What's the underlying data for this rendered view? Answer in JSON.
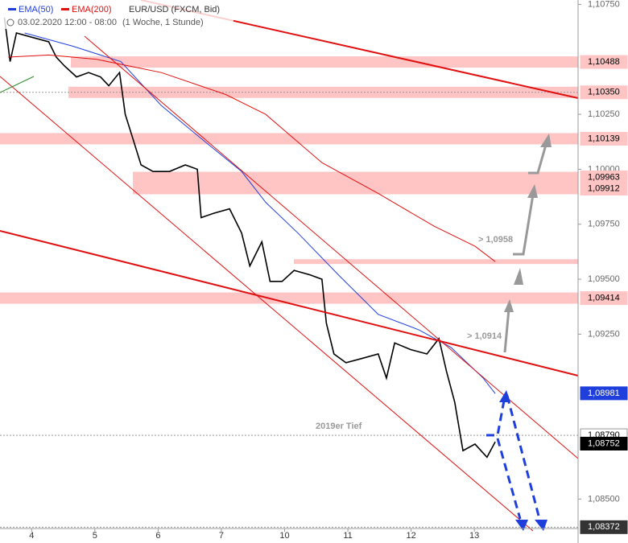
{
  "chart_data": {
    "type": "line",
    "header": {
      "symbol": "EUR/USD (FXCM, Bid)",
      "date": "03.02.2020 12:00 - 08:00",
      "period": "(1 Woche, 1 Stunde)"
    },
    "xlim": [
      -0.5,
      8.64
    ],
    "xticks": [
      {
        "value": 0,
        "label": "4"
      },
      {
        "value": 1,
        "label": "5"
      },
      {
        "value": 2,
        "label": "6"
      },
      {
        "value": 3,
        "label": "7"
      },
      {
        "value": 4,
        "label": "10"
      },
      {
        "value": 5,
        "label": "11"
      },
      {
        "value": 6,
        "label": "12"
      },
      {
        "value": 7,
        "label": "13"
      }
    ],
    "ylim": [
      1.083,
      1.1077
    ],
    "yticks": [
      {
        "value": 1.1075,
        "label": "1,10750"
      },
      {
        "value": 1.1025,
        "label": "1,10250"
      },
      {
        "value": 1.1,
        "label": "1,10000"
      },
      {
        "value": 1.0975,
        "label": "1,09750"
      },
      {
        "value": 1.095,
        "label": "1,09500"
      },
      {
        "value": 1.0925,
        "label": "1,09250"
      },
      {
        "value": 1.085,
        "label": "1,08500"
      }
    ],
    "series": [
      {
        "name": "EUR/USD (FXCM, Bid)",
        "color": "#000000",
        "x": [
          -0.43,
          -0.34,
          -0.24,
          0.01,
          0.27,
          0.39,
          0.52,
          0.71,
          0.9,
          1.09,
          1.22,
          1.39,
          1.48,
          1.6,
          1.73,
          1.92,
          2.18,
          2.43,
          2.62,
          2.68,
          2.88,
          3.13,
          3.32,
          3.45,
          3.64,
          3.77,
          3.96,
          4.15,
          4.4,
          4.59,
          4.66,
          4.78,
          4.97,
          5.23,
          5.48,
          5.61,
          5.74,
          5.99,
          6.25,
          6.44,
          6.56,
          6.69,
          6.82,
          7.01,
          7.2,
          7.33
        ],
        "values": [
          1.1069,
          1.1049,
          1.1062,
          1.106,
          1.1058,
          1.1051,
          1.1047,
          1.1042,
          1.1044,
          1.1042,
          1.1038,
          1.1044,
          1.1025,
          1.1014,
          1.1002,
          1.0999,
          1.0999,
          1.1002,
          1.1,
          1.0978,
          1.098,
          1.0982,
          1.0971,
          1.0956,
          1.0967,
          1.0949,
          1.0949,
          1.0954,
          1.0952,
          1.095,
          1.093,
          1.0916,
          1.0912,
          1.0914,
          1.0916,
          1.0905,
          1.0921,
          1.0918,
          1.0916,
          1.0923,
          1.0908,
          1.0894,
          1.0872,
          1.0875,
          1.0869,
          1.0876
        ]
      },
      {
        "name": "EMA(50)",
        "color": "#1f3fdd",
        "x": [
          -0.11,
          0.65,
          1.41,
          2.05,
          2.68,
          3.32,
          3.7,
          4.21,
          4.85,
          5.48,
          6.12,
          6.63,
          7.14,
          7.33
        ],
        "values": [
          1.1062,
          1.1056,
          1.1049,
          1.1029,
          1.1014,
          1.0999,
          1.0985,
          1.0971,
          1.0952,
          1.0934,
          1.0927,
          1.0919,
          1.0905,
          1.0898
        ]
      },
      {
        "name": "EMA(200)",
        "color": "#e01010",
        "x": [
          -0.37,
          0.27,
          1.03,
          2.05,
          3.07,
          3.7,
          4.59,
          5.48,
          6.37,
          7.01,
          7.33
        ],
        "values": [
          1.1051,
          1.1052,
          1.105,
          1.1044,
          1.1034,
          1.1025,
          1.1003,
          1.0989,
          1.0974,
          1.0965,
          1.0958
        ]
      }
    ],
    "levels": [
      {
        "value": 1.10488,
        "label": "1,10488",
        "color": "#ffc4c4"
      },
      {
        "value": 1.1035,
        "label": "1,10350",
        "color": "#ffc4c4"
      },
      {
        "value": 1.10139,
        "label": "1,10139",
        "color": "#ffc4c4"
      },
      {
        "value": 1.09963,
        "label": "1,09963",
        "color": "#ffc4c4"
      },
      {
        "value": 1.09912,
        "label": "1,09912",
        "color": "#ffc4c4"
      },
      {
        "value": 1.09414,
        "label": "1,09414",
        "color": "#ffc4c4"
      },
      {
        "value": 1.08981,
        "label": "1,08981",
        "color": "#1f3fdd"
      },
      {
        "value": 1.0879,
        "label": "1,08790",
        "color": "#ffffff"
      },
      {
        "value": 1.08752,
        "label": "1,08752",
        "color": "#000000"
      },
      {
        "value": 1.08372,
        "label": "1,08372",
        "color": "#333333"
      }
    ],
    "zone": 1.0958,
    "annotations": [
      "> 1,0958",
      "> 1,0914",
      "2019er Tief"
    ]
  }
}
